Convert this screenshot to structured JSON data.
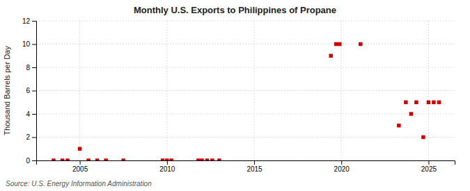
{
  "chart_data": {
    "type": "scatter",
    "title": "Monthly U.S. Exports to Philippines of Propane",
    "ylabel": "Thousand Barrels per Day",
    "source": "Source: U.S. Energy Information Administration",
    "color": "#cc0000",
    "marker": "square",
    "grid": true,
    "xlim": [
      2002.5,
      2026.5
    ],
    "ylim": [
      0,
      12
    ],
    "xticks": [
      2005,
      2010,
      2015,
      2020,
      2025
    ],
    "yticks": [
      0,
      2,
      4,
      6,
      8,
      10,
      12
    ],
    "x": [
      2003.5,
      2004.0,
      2004.3,
      2005.0,
      2005.5,
      2006.0,
      2006.5,
      2007.5,
      2009.75,
      2010.0,
      2010.25,
      2011.8,
      2012.0,
      2012.3,
      2012.6,
      2013.0,
      2019.4,
      2019.7,
      2019.9,
      2021.1,
      2023.3,
      2023.7,
      2024.0,
      2024.3,
      2024.7,
      2025.0,
      2025.3,
      2025.6
    ],
    "values": [
      0.0,
      0.0,
      0.0,
      1.0,
      0.0,
      0.0,
      0.0,
      0.0,
      0.0,
      0.0,
      0.0,
      0.0,
      0.0,
      0.0,
      0.0,
      0.0,
      9.0,
      10.0,
      10.0,
      10.0,
      3.0,
      5.0,
      4.0,
      5.0,
      2.0,
      5.0,
      5.0,
      5.0
    ]
  }
}
